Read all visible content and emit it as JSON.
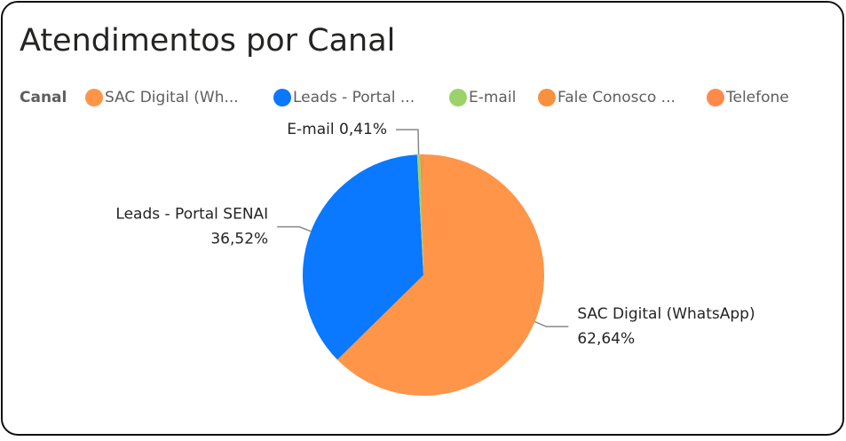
{
  "chart_data": {
    "type": "pie",
    "title": "Atendimentos por Canal",
    "legend_title": "Canal",
    "categories": [
      "SAC Digital (Wh...",
      "Leads - Portal ...",
      "E-mail",
      "Fale Conosco ...",
      "Telefone"
    ],
    "label_names": [
      "SAC Digital (WhatsApp)",
      "Leads - Portal SENAI",
      "E-mail",
      null,
      null
    ],
    "values": [
      62.64,
      36.52,
      0.41,
      0.3,
      0.13
    ],
    "value_labels": [
      "62,64%",
      "36,52%",
      "0,41%",
      null,
      null
    ],
    "colors": [
      "#FF9548",
      "#0A78FF",
      "#9BD36A",
      "#F7903F",
      "#FF8A4C"
    ],
    "legend": "top-left"
  }
}
